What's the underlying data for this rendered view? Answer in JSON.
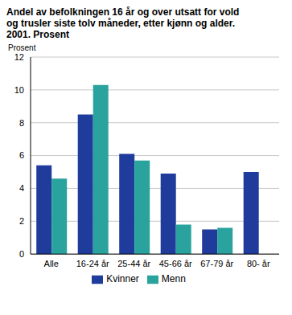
{
  "chart_data": {
    "type": "bar",
    "title": "Andel av befolkningen 16 år og over utsatt for vold og trusler siste tolv måneder, etter kjønn og alder. 2001. Prosent",
    "y_label": "Prosent",
    "categories": [
      "Alle",
      "16-24 år",
      "25-44 år",
      "45-66 år",
      "67-79 år",
      "80- år"
    ],
    "series": [
      {
        "name": "Kvinner",
        "color": "#1f3b9b",
        "values": [
          5.4,
          8.5,
          6.1,
          4.9,
          1.5,
          5.0
        ]
      },
      {
        "name": "Menn",
        "color": "#2aa39f",
        "values": [
          4.6,
          10.3,
          5.7,
          1.8,
          1.6,
          0.0
        ]
      }
    ],
    "ylim": [
      0,
      12
    ],
    "yticks": [
      0,
      2,
      4,
      6,
      8,
      10,
      12
    ],
    "grid": true,
    "legend": "bottom"
  }
}
